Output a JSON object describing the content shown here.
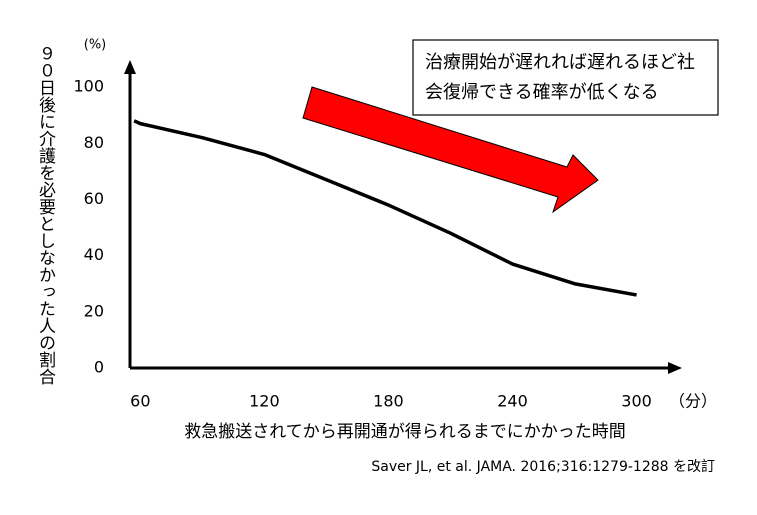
{
  "chart_data": {
    "type": "line",
    "y_label": "９０日後に介護を必要としなかった人の割合",
    "y_unit": "(%)",
    "x_label": "救急搬送されてから再開通が得られるまでにかかった時間",
    "x_unit": "（分）",
    "annotation_lines": [
      "治療開始が遅れれば遅れるほど社",
      "会復帰できる確率が低くなる"
    ],
    "source": "Saver JL, et al. JAMA. 2016;316:1279-1288 を改訂",
    "x": [
      57,
      60,
      90,
      120,
      150,
      180,
      210,
      240,
      270,
      300
    ],
    "values": [
      88,
      87,
      82,
      76,
      67,
      58,
      48,
      37,
      30,
      26
    ],
    "color": "#000000",
    "xlim": [
      55,
      321
    ],
    "xticks": [
      60,
      120,
      180,
      240,
      300
    ],
    "ylim": [
      0,
      110
    ],
    "yticks": [
      0,
      20,
      40,
      60,
      80,
      100
    ]
  }
}
